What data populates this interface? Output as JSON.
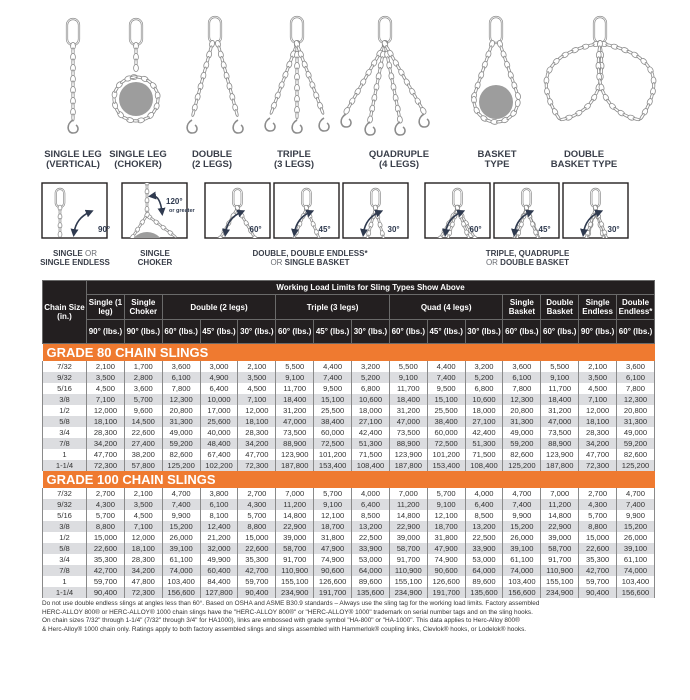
{
  "sling_types": [
    {
      "label": "SINGLE LEG\n(VERTICAL)"
    },
    {
      "label": "SINGLE LEG\n(CHOKER)"
    },
    {
      "label": "DOUBLE\n(2 LEGS)"
    },
    {
      "label": "TRIPLE\n(3 LEGS)"
    },
    {
      "label": "QUADRUPLE\n(4 LEGS)"
    },
    {
      "label": "BASKET\nTYPE"
    },
    {
      "label": "DOUBLE\nBASKET TYPE"
    }
  ],
  "angle_diagrams": {
    "angles": [
      "90°",
      "120°",
      "60°",
      "45°",
      "30°",
      "60°",
      "45°",
      "30°"
    ],
    "choker_note": "or greater",
    "groups": [
      {
        "bold1": "SINGLE",
        "light": " OR",
        "bold2": "SINGLE ENDLESS"
      },
      {
        "bold1": "SINGLE",
        "light": "",
        "bold2": "CHOKER"
      },
      {
        "bold1": "DOUBLE, DOUBLE ENDLESS*",
        "light": "OR",
        "bold2": " SINGLE BASKET"
      },
      {
        "bold1": "TRIPLE, QUADRUPLE",
        "light": "OR",
        "bold2": " DOUBLE BASKET"
      }
    ]
  },
  "colors": {
    "header": "#231f20",
    "grade_band": "#ef7a30",
    "stripe": "#dcdde0",
    "chain": "#8c8c8c",
    "load": "#9d9d9d"
  },
  "table": {
    "title": "Working Load Limits for Sling Types Show Above",
    "chain_size_header": "Chain Size (in.)",
    "groups": [
      {
        "label": "Single (1 leg)",
        "span": 1
      },
      {
        "label": "Single Choker",
        "span": 1
      },
      {
        "label": "Double (2 legs)",
        "span": 3
      },
      {
        "label": "Triple (3 legs)",
        "span": 3
      },
      {
        "label": "Quad (4 legs)",
        "span": 3
      },
      {
        "label": "Single Basket",
        "span": 1
      },
      {
        "label": "Double Basket",
        "span": 1
      },
      {
        "label": "Single Endless",
        "span": 1
      },
      {
        "label": "Double Endless*",
        "span": 1
      }
    ],
    "angles": [
      "90° (lbs.)",
      "90° (lbs.)",
      "60° (lbs.)",
      "45° (lbs.)",
      "30° (lbs.)",
      "60° (lbs.)",
      "45° (lbs.)",
      "30° (lbs.)",
      "60° (lbs.)",
      "45° (lbs.)",
      "30° (lbs.)",
      "60° (lbs.)",
      "60° (lbs.)",
      "90° (lbs.)",
      "60° (lbs.)"
    ],
    "sections": [
      {
        "title": "GRADE 80 CHAIN SLINGS",
        "rows": [
          [
            "7/32",
            "2,100",
            "1,700",
            "3,600",
            "3,000",
            "2,100",
            "5,500",
            "4,400",
            "3,200",
            "5,500",
            "4,400",
            "3,200",
            "3,600",
            "5,500",
            "2,100",
            "3,600"
          ],
          [
            "9/32",
            "3,500",
            "2,800",
            "6,100",
            "4,900",
            "3,500",
            "9,100",
            "7,400",
            "5,200",
            "9,100",
            "7,400",
            "5,200",
            "6,100",
            "9,100",
            "3,500",
            "6,100"
          ],
          [
            "5/16",
            "4,500",
            "3,600",
            "7,800",
            "6,400",
            "4,500",
            "11,700",
            "9,500",
            "6,800",
            "11,700",
            "9,500",
            "6,800",
            "7,800",
            "11,700",
            "4,500",
            "7,800"
          ],
          [
            "3/8",
            "7,100",
            "5,700",
            "12,300",
            "10,000",
            "7,100",
            "18,400",
            "15,100",
            "10,600",
            "18,400",
            "15,100",
            "10,600",
            "12,300",
            "18,400",
            "7,100",
            "12,300"
          ],
          [
            "1/2",
            "12,000",
            "9,600",
            "20,800",
            "17,000",
            "12,000",
            "31,200",
            "25,500",
            "18,000",
            "31,200",
            "25,500",
            "18,000",
            "20,800",
            "31,200",
            "12,000",
            "20,800"
          ],
          [
            "5/8",
            "18,100",
            "14,500",
            "31,300",
            "25,600",
            "18,100",
            "47,000",
            "38,400",
            "27,100",
            "47,000",
            "38,400",
            "27,100",
            "31,300",
            "47,000",
            "18,100",
            "31,300"
          ],
          [
            "3/4",
            "28,300",
            "22,600",
            "49,000",
            "40,000",
            "28,300",
            "73,500",
            "60,000",
            "42,400",
            "73,500",
            "60,000",
            "42,400",
            "49,000",
            "73,500",
            "28,300",
            "49,000"
          ],
          [
            "7/8",
            "34,200",
            "27,400",
            "59,200",
            "48,400",
            "34,200",
            "88,900",
            "72,500",
            "51,300",
            "88,900",
            "72,500",
            "51,300",
            "59,200",
            "88,900",
            "34,200",
            "59,200"
          ],
          [
            "1",
            "47,700",
            "38,200",
            "82,600",
            "67,400",
            "47,700",
            "123,900",
            "101,200",
            "71,500",
            "123,900",
            "101,200",
            "71,500",
            "82,600",
            "123,900",
            "47,700",
            "82,600"
          ],
          [
            "1-1/4",
            "72,300",
            "57,800",
            "125,200",
            "102,200",
            "72,300",
            "187,800",
            "153,400",
            "108,400",
            "187,800",
            "153,400",
            "108,400",
            "125,200",
            "187,800",
            "72,300",
            "125,200"
          ]
        ]
      },
      {
        "title": "GRADE 100 CHAIN SLINGS",
        "rows": [
          [
            "7/32",
            "2,700",
            "2,100",
            "4,700",
            "3,800",
            "2,700",
            "7,000",
            "5,700",
            "4,000",
            "7,000",
            "5,700",
            "4,000",
            "4,700",
            "7,000",
            "2,700",
            "4,700"
          ],
          [
            "9/32",
            "4,300",
            "3,500",
            "7,400",
            "6,100",
            "4,300",
            "11,200",
            "9,100",
            "6,400",
            "11,200",
            "9,100",
            "6,400",
            "7,400",
            "11,200",
            "4,300",
            "7,400"
          ],
          [
            "5/16",
            "5,700",
            "4,500",
            "9,900",
            "8,100",
            "5,700",
            "14,800",
            "12,100",
            "8,500",
            "14,800",
            "12,100",
            "8,500",
            "9,900",
            "14,800",
            "5,700",
            "9,900"
          ],
          [
            "3/8",
            "8,800",
            "7,100",
            "15,200",
            "12,400",
            "8,800",
            "22,900",
            "18,700",
            "13,200",
            "22,900",
            "18,700",
            "13,200",
            "15,200",
            "22,900",
            "8,800",
            "15,200"
          ],
          [
            "1/2",
            "15,000",
            "12,000",
            "26,000",
            "21,200",
            "15,000",
            "39,000",
            "31,800",
            "22,500",
            "39,000",
            "31,800",
            "22,500",
            "26,000",
            "39,000",
            "15,000",
            "26,000"
          ],
          [
            "5/8",
            "22,600",
            "18,100",
            "39,100",
            "32,000",
            "22,600",
            "58,700",
            "47,900",
            "33,900",
            "58,700",
            "47,900",
            "33,900",
            "39,100",
            "58,700",
            "22,600",
            "39,100"
          ],
          [
            "3/4",
            "35,300",
            "28,300",
            "61,100",
            "49,900",
            "35,300",
            "91,700",
            "74,900",
            "53,000",
            "91,700",
            "74,900",
            "53,000",
            "61,100",
            "91,700",
            "35,300",
            "61,100"
          ],
          [
            "7/8",
            "42,700",
            "34,200",
            "74,000",
            "60,400",
            "42,700",
            "110,900",
            "90,600",
            "64,000",
            "110,900",
            "90,600",
            "64,000",
            "74,000",
            "110,900",
            "42,700",
            "74,000"
          ],
          [
            "1",
            "59,700",
            "47,800",
            "103,400",
            "84,400",
            "59,700",
            "155,100",
            "126,600",
            "89,600",
            "155,100",
            "126,600",
            "89,600",
            "103,400",
            "155,100",
            "59,700",
            "103,400"
          ],
          [
            "1-1/4",
            "90,400",
            "72,300",
            "156,600",
            "127,800",
            "90,400",
            "234,900",
            "191,700",
            "135,600",
            "234,900",
            "191,700",
            "135,600",
            "156,600",
            "234,900",
            "90,400",
            "156,600"
          ]
        ]
      }
    ]
  },
  "footnote": [
    "Do not use double endless slings at angles less than 60°. Based on OSHA and ASME B30.9 standards – Always use the sling tag for the working load limits. Factory assembled",
    "HERC-ALLOY 800® or HERC-ALLOY® 1000 chain slings have the \"HERC-ALLOY 800®\" or \"HERC-ALLOY® 1000\" trademark on serial number tags and on the sling hooks.",
    "On chain sizes 7/32\" through 1-1/4\" (7/32\" through 3/4\" for HA1000), links are embossed with grade symbol \"HA-800\" or \"HA-1000\". This data applies to Herc-Alloy 800®",
    "& Herc-Alloy® 1000 chain only. Ratings apply to both factory assembled slings and slings assembled with Hammerlok® coupling links, Clevlok® hooks, or Lodelok® hooks."
  ]
}
